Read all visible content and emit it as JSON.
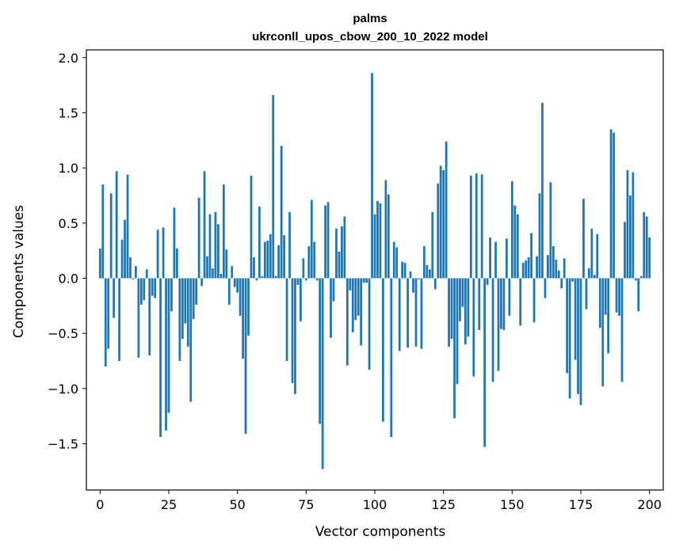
{
  "chart_data": {
    "type": "bar",
    "title": "palms",
    "subtitle": "ukrconll_upos_cbow_200_10_2022 model",
    "xlabel": "Vector components",
    "ylabel": "Components values",
    "xlim": [
      -5,
      205
    ],
    "ylim": [
      -1.92,
      2.07
    ],
    "xticks": [
      0,
      25,
      50,
      75,
      100,
      125,
      150,
      175,
      200
    ],
    "yticks": [
      -1.5,
      -1.0,
      -0.5,
      0.0,
      0.5,
      1.0,
      1.5,
      2.0
    ],
    "ytick_labels": [
      "−1.5",
      "−1.0",
      "−0.5",
      "0.0",
      "0.5",
      "1.0",
      "1.5",
      "2.0"
    ],
    "bar_color": "#1f77b4",
    "grid": false,
    "x_start": 0,
    "values": [
      0.27,
      0.85,
      -0.8,
      -0.64,
      0.77,
      -0.36,
      0.97,
      -0.75,
      0.35,
      0.53,
      0.94,
      0.19,
      -0.01,
      0.11,
      -0.72,
      -0.24,
      -0.2,
      0.08,
      -0.7,
      -0.16,
      -0.18,
      0.44,
      -1.44,
      0.46,
      -1.38,
      -1.22,
      -0.3,
      0.64,
      0.27,
      -0.75,
      -0.55,
      -0.41,
      -0.62,
      -1.12,
      -0.37,
      -0.24,
      0.73,
      -0.07,
      0.97,
      0.2,
      0.58,
      0.09,
      0.6,
      0.49,
      0.04,
      0.85,
      0.26,
      -0.24,
      0.11,
      -0.08,
      -0.13,
      -0.34,
      -0.73,
      -1.41,
      -0.52,
      0.93,
      0.19,
      -0.02,
      0.65,
      0.02,
      0.33,
      0.34,
      0.4,
      1.66,
      0.02,
      0.3,
      1.2,
      0.39,
      -0.75,
      0.6,
      -0.95,
      -1.05,
      -0.06,
      -0.39,
      0.18,
      -0.02,
      0.29,
      0.71,
      0.33,
      -0.02,
      -1.32,
      -1.73,
      0.66,
      0.69,
      -0.54,
      -0.21,
      0.45,
      0.24,
      0.47,
      0.56,
      -0.79,
      -0.11,
      -0.49,
      -0.38,
      -0.34,
      -0.61,
      -0.04,
      -0.04,
      -0.83,
      1.86,
      0.58,
      0.7,
      0.68,
      -1.3,
      0.89,
      0.76,
      -1.44,
      0.33,
      0.28,
      -0.66,
      0.15,
      0.14,
      -0.63,
      0.06,
      -0.13,
      -0.62,
      -0.01,
      -0.64,
      0.29,
      0.12,
      0.08,
      0.6,
      -0.1,
      0.86,
      1.02,
      0.98,
      1.24,
      -0.62,
      -0.55,
      -1.27,
      -0.96,
      -0.39,
      -0.26,
      -0.6,
      -0.53,
      0.93,
      -0.89,
      0.95,
      -0.47,
      0.94,
      -1.53,
      -0.06,
      0.37,
      -0.94,
      0.33,
      -0.84,
      -0.46,
      -0.47,
      0.36,
      -0.34,
      0.88,
      0.66,
      0.58,
      -0.43,
      0.14,
      0.16,
      0.19,
      0.41,
      -0.4,
      0.2,
      0.77,
      1.59,
      -0.18,
      0.21,
      0.87,
      0.29,
      0.17,
      0.07,
      -0.09,
      0.18,
      -0.86,
      -1.09,
      -0.03,
      -0.74,
      -1.05,
      -1.15,
      0.72,
      -0.28,
      0.09,
      0.45,
      0.03,
      0.4,
      -0.45,
      -0.98,
      -0.33,
      -0.68,
      1.35,
      1.32,
      -0.31,
      -0.34,
      -0.94,
      0.51,
      0.98,
      0.75,
      0.96,
      -0.02,
      -0.3,
      0.02,
      0.6,
      0.56,
      0.37
    ]
  }
}
